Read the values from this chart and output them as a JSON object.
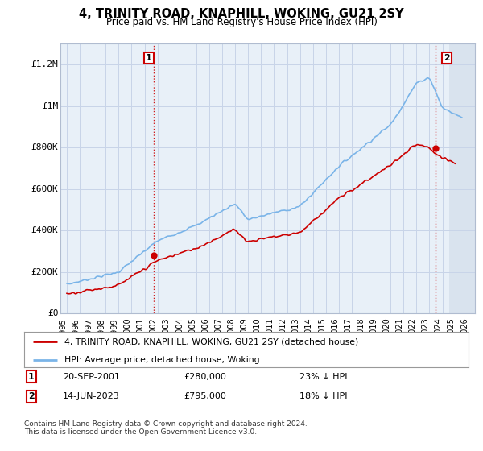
{
  "title": "4, TRINITY ROAD, KNAPHILL, WOKING, GU21 2SY",
  "subtitle": "Price paid vs. HM Land Registry's House Price Index (HPI)",
  "xlim_start": 1994.5,
  "xlim_end": 2026.5,
  "ylim": [
    0,
    1300000
  ],
  "yticks": [
    0,
    200000,
    400000,
    600000,
    800000,
    1000000,
    1200000
  ],
  "ytick_labels": [
    "£0",
    "£200K",
    "£400K",
    "£600K",
    "£800K",
    "£1M",
    "£1.2M"
  ],
  "xticks": [
    1995,
    1996,
    1997,
    1998,
    1999,
    2000,
    2001,
    2002,
    2003,
    2004,
    2005,
    2006,
    2007,
    2008,
    2009,
    2010,
    2011,
    2012,
    2013,
    2014,
    2015,
    2016,
    2017,
    2018,
    2019,
    2020,
    2021,
    2022,
    2023,
    2024,
    2025,
    2026
  ],
  "sale1_x": 2001.72,
  "sale1_y": 280000,
  "sale2_x": 2023.45,
  "sale2_y": 795000,
  "sale_color": "#cc0000",
  "hpi_color": "#7ab4e8",
  "vline_color": "#cc0000",
  "legend_entries": [
    "4, TRINITY ROAD, KNAPHILL, WOKING, GU21 2SY (detached house)",
    "HPI: Average price, detached house, Woking"
  ],
  "footer": "Contains HM Land Registry data © Crown copyright and database right 2024.\nThis data is licensed under the Open Government Licence v3.0.",
  "note1_label": "1",
  "note1_date": "20-SEP-2001",
  "note1_price": "£280,000",
  "note1_hpi": "23% ↓ HPI",
  "note2_label": "2",
  "note2_date": "14-JUN-2023",
  "note2_price": "£795,000",
  "note2_hpi": "18% ↓ HPI",
  "background_color": "#ffffff",
  "grid_color": "#c8d4e8",
  "plot_bg_color": "#e8f0f8"
}
